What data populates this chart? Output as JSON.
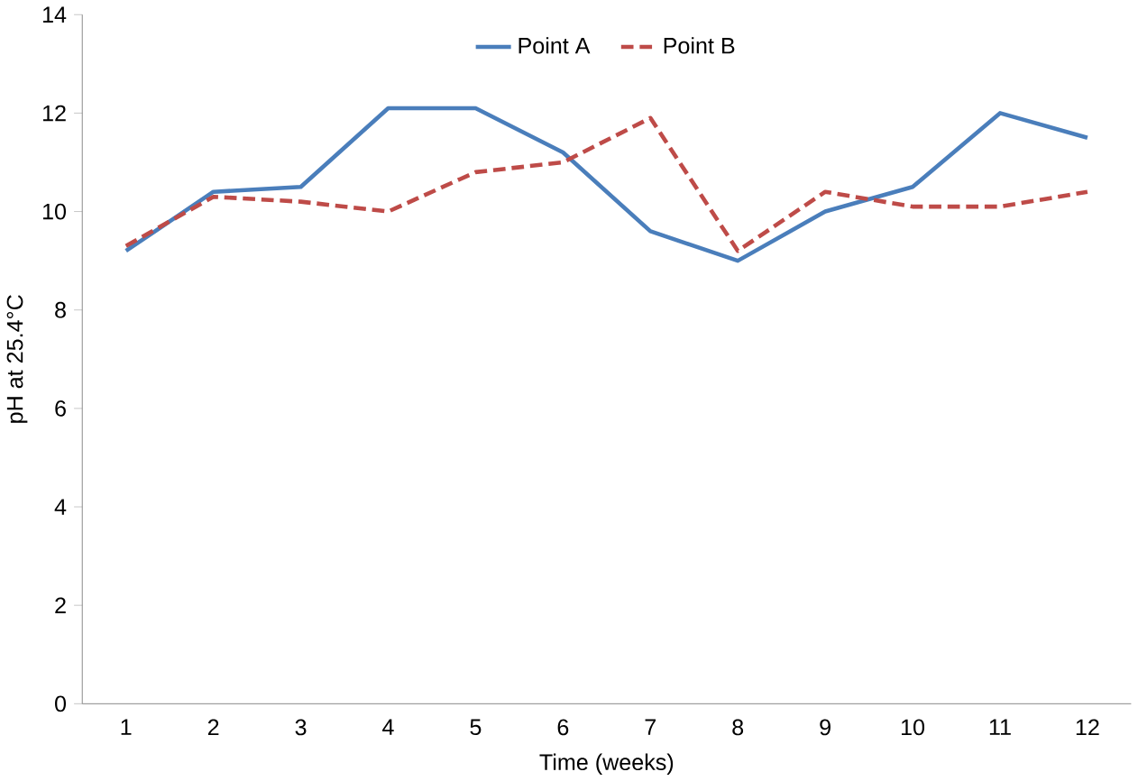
{
  "chart_data": {
    "type": "line",
    "xlabel": "Time (weeks)",
    "ylabel": "pH at 25.4°C",
    "categories": [
      "1",
      "2",
      "3",
      "4",
      "5",
      "6",
      "7",
      "8",
      "9",
      "10",
      "11",
      "12"
    ],
    "series": [
      {
        "name": "Point A",
        "color": "#4a7ebb",
        "line_style": "solid",
        "values": [
          9.2,
          10.4,
          10.5,
          12.1,
          12.1,
          11.2,
          9.6,
          9.0,
          10.0,
          10.5,
          12.0,
          11.5
        ]
      },
      {
        "name": "Point B",
        "color": "#be4b48",
        "line_style": "dashed",
        "values": [
          9.3,
          10.3,
          10.2,
          10.0,
          10.8,
          11.0,
          11.9,
          9.2,
          10.4,
          10.1,
          10.1,
          10.4
        ]
      }
    ],
    "ylim": [
      0,
      14
    ],
    "yticks": [
      0,
      2,
      4,
      6,
      8,
      10,
      12,
      14
    ],
    "grid": false,
    "legend": "top",
    "marker": "none"
  }
}
